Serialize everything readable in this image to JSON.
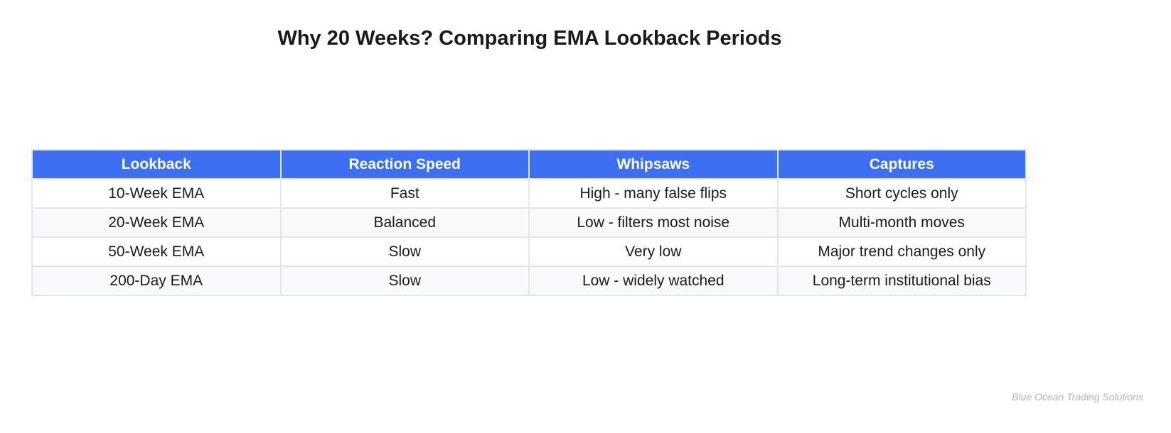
{
  "chart_data": {
    "type": "table",
    "title": "Why 20 Weeks? Comparing EMA Lookback Periods",
    "columns": [
      "Lookback",
      "Reaction Speed",
      "Whipsaws",
      "Captures"
    ],
    "rows": [
      [
        "10-Week EMA",
        "Fast",
        "High - many false flips",
        "Short cycles only"
      ],
      [
        "20-Week EMA",
        "Balanced",
        "Low - filters most noise",
        "Multi-month moves"
      ],
      [
        "50-Week EMA",
        "Slow",
        "Very low",
        "Major trend changes only"
      ],
      [
        "200-Day EMA",
        "Slow",
        "Low - widely watched",
        "Long-term institutional bias"
      ]
    ]
  },
  "watermark": "Blue Ocean Trading Solutions",
  "colors": {
    "header_bg": "#3d6ff2",
    "header_text": "#ffffff",
    "row_alt_bg": "#f8f9fb",
    "border": "#e3e6eb"
  }
}
